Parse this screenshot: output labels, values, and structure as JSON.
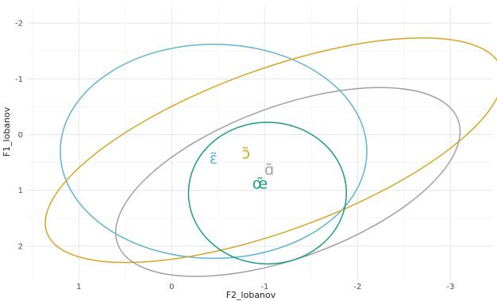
{
  "chart_data": {
    "type": "scatter",
    "xlabel": "F2_lobanov",
    "ylabel": "F1_lobanov",
    "x_reversed": true,
    "y_reversed": true,
    "xlim": [
      1.55,
      -3.45
    ],
    "ylim": [
      -2.3,
      2.6
    ],
    "x_ticks": [
      {
        "value": 1,
        "label": "1"
      },
      {
        "value": 0,
        "label": "0"
      },
      {
        "value": -1,
        "label": "-1"
      },
      {
        "value": -2,
        "label": "-2"
      },
      {
        "value": -3,
        "label": "-3"
      }
    ],
    "y_ticks": [
      {
        "value": -2,
        "label": "-2"
      },
      {
        "value": -1,
        "label": "-1"
      },
      {
        "value": 0,
        "label": "0"
      },
      {
        "value": 1,
        "label": "1"
      },
      {
        "value": 2,
        "label": "2"
      }
    ],
    "grid": true,
    "legend": "none",
    "series": [
      {
        "label": "ɛ̃",
        "color": "#5fb4d4",
        "mean": {
          "x": -0.45,
          "y": 0.42
        },
        "ellipse": {
          "cx": -0.45,
          "cy": 0.3,
          "rx": 1.65,
          "ry": 1.92,
          "angle": 0
        }
      },
      {
        "label": "ɔ̃",
        "color": "#d9a520",
        "mean": {
          "x": -0.8,
          "y": 0.33
        },
        "ellipse": {
          "cx": -1.1,
          "cy": 0.28,
          "rx": 2.6,
          "ry": 1.45,
          "angle": -20
        }
      },
      {
        "label": "ɑ̃",
        "color": "#a0a0a0",
        "mean": {
          "x": -1.05,
          "y": 0.62
        },
        "ellipse": {
          "cx": -1.25,
          "cy": 0.85,
          "rx": 1.95,
          "ry": 1.36,
          "angle": -20
        }
      },
      {
        "label": "œ̃",
        "color": "#1a9e7f",
        "mean": {
          "x": -0.95,
          "y": 0.87
        },
        "ellipse": {
          "cx": -1.03,
          "cy": 1.05,
          "rx": 0.85,
          "ry": 1.27,
          "angle": 0
        }
      }
    ]
  }
}
